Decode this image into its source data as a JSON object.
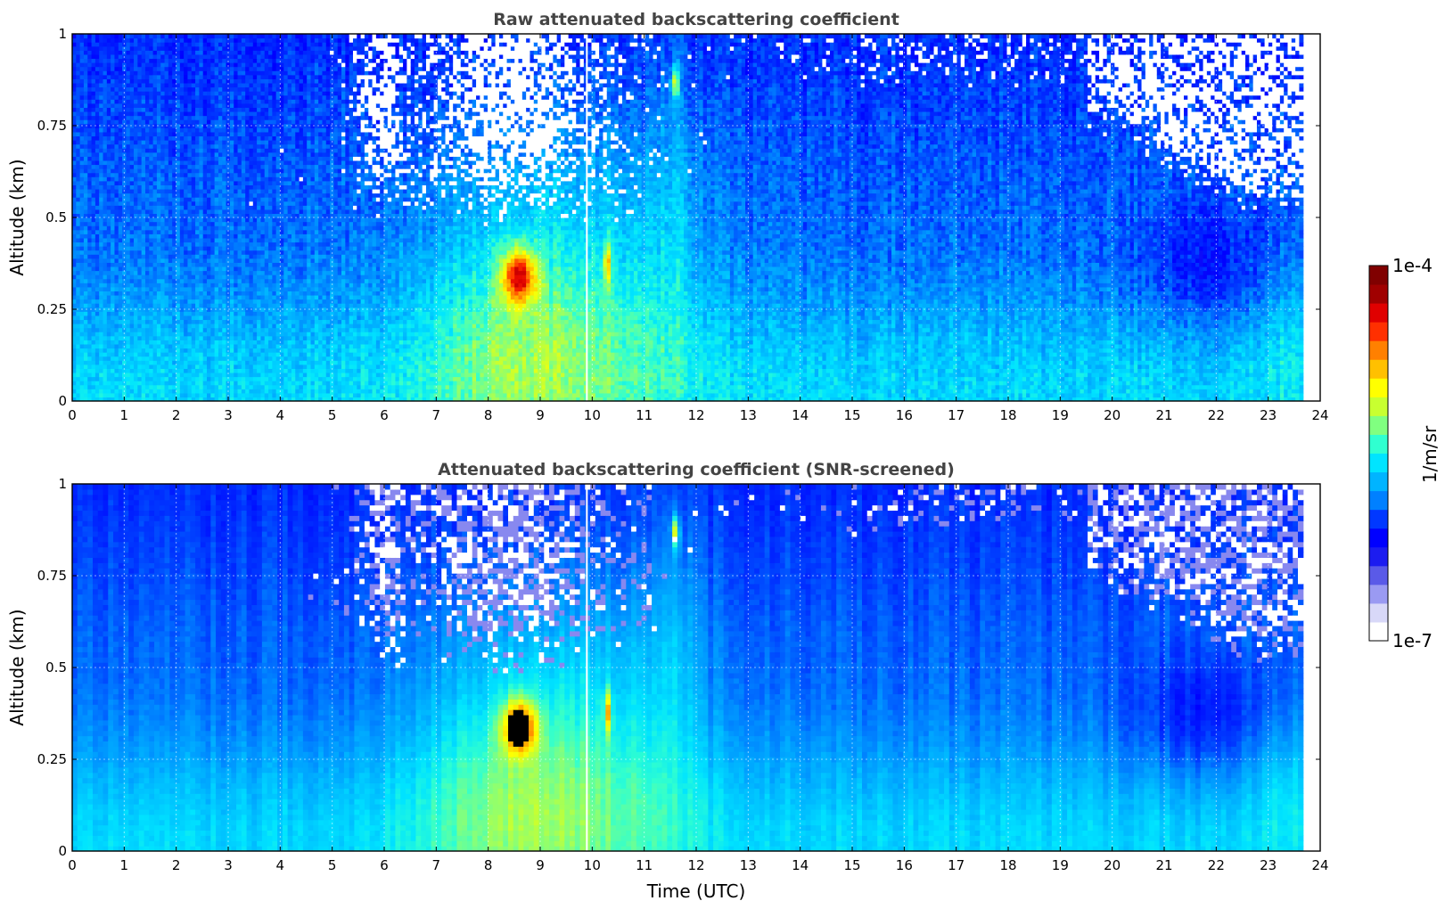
{
  "figure": {
    "colorbar": {
      "label": "1/m/sr",
      "max_label": "1e-4",
      "min_label": "1e-7",
      "scale": "log",
      "range": [
        1e-07,
        0.0001
      ],
      "colormap": [
        "#ffffff",
        "#d8d8f8",
        "#9a9af2",
        "#5a5ae8",
        "#1c1cf0",
        "#0000ff",
        "#0038ff",
        "#0080ff",
        "#00b4ff",
        "#00e4ff",
        "#30ffd0",
        "#80ff80",
        "#c8ff30",
        "#ffff00",
        "#ffc000",
        "#ff8000",
        "#ff3000",
        "#e00000",
        "#a00000",
        "#800000"
      ]
    },
    "xlabel": "Time (UTC)"
  },
  "chart_data": [
    {
      "type": "heatmap",
      "title": "Raw attenuated backscattering coefficient",
      "xlabel": "",
      "ylabel": "Altitude (km)",
      "xlim": [
        0,
        24
      ],
      "ylim": [
        0,
        1
      ],
      "x_ticks": [
        "0",
        "1",
        "2",
        "3",
        "4",
        "5",
        "6",
        "7",
        "8",
        "9",
        "10",
        "11",
        "12",
        "13",
        "14",
        "15",
        "16",
        "17",
        "18",
        "19",
        "20",
        "21",
        "22",
        "23",
        "24"
      ],
      "y_ticks": [
        "0",
        "0.25",
        "0.5",
        "0.75",
        "1"
      ],
      "data_end_time": 23.67,
      "grid": true,
      "screened": false
    },
    {
      "type": "heatmap",
      "title": "Attenuated backscattering coefficient (SNR-screened)",
      "xlabel": "Time (UTC)",
      "ylabel": "Altitude (km)",
      "xlim": [
        0,
        24
      ],
      "ylim": [
        0,
        1
      ],
      "x_ticks": [
        "0",
        "1",
        "2",
        "3",
        "4",
        "5",
        "6",
        "7",
        "8",
        "9",
        "10",
        "11",
        "12",
        "13",
        "14",
        "15",
        "16",
        "17",
        "18",
        "19",
        "20",
        "21",
        "22",
        "23",
        "24"
      ],
      "y_ticks": [
        "0",
        "0.25",
        "0.5",
        "0.75",
        "1"
      ],
      "data_end_time": 23.67,
      "grid": true,
      "screened": true
    }
  ]
}
